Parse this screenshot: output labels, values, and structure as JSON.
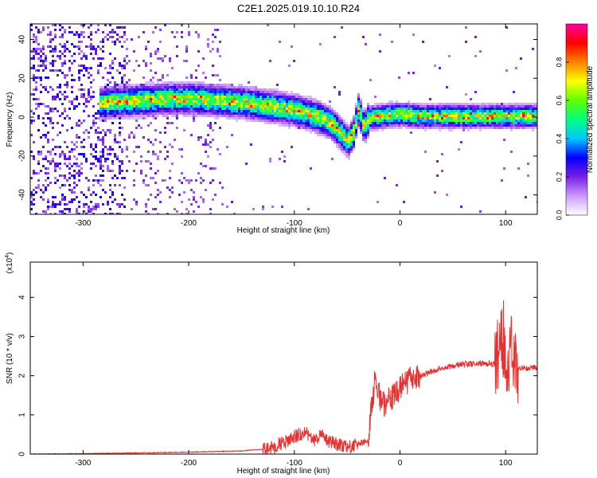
{
  "figure_title": "C2E1.2025.019.10.10.R24",
  "chart_data": [
    {
      "type": "heatmap",
      "xlabel": "Height of straight line (km)",
      "ylabel": "Frequency (Hz)",
      "xlim": [
        -350,
        130
      ],
      "ylim": [
        -50,
        48
      ],
      "xticks": [
        -300,
        -200,
        -100,
        0,
        100
      ],
      "yticks": [
        -40,
        -20,
        0,
        20,
        40
      ],
      "colorbar": {
        "label": "Normalized spectral amplitude",
        "range": [
          0,
          1
        ],
        "ticks": [
          0.0,
          0.2,
          0.4,
          0.6,
          0.8
        ],
        "tick_labels": [
          "0.0",
          "0.2",
          "0.4",
          "0.6",
          "0.8"
        ],
        "colormap": [
          "#ffffff",
          "#cc99ff",
          "#7a1ee6",
          "#0000ff",
          "#00c8ff",
          "#00ff80",
          "#60ff00",
          "#ffff00",
          "#ff8000",
          "#ff0000",
          "#ff00a0"
        ]
      },
      "ridge": {
        "x": [
          -300,
          -280,
          -250,
          -220,
          -200,
          -170,
          -150,
          -120,
          -100,
          -80,
          -65,
          -50,
          -45,
          -40,
          -35,
          -30,
          -20,
          0,
          20,
          50,
          80,
          100,
          130
        ],
        "freq": [
          6,
          8,
          9,
          10,
          10,
          9,
          8,
          6,
          4,
          1,
          -3,
          -12,
          -8,
          5,
          -5,
          0,
          1,
          2,
          1,
          1,
          1,
          1,
          1
        ]
      },
      "grid": false
    },
    {
      "type": "line",
      "xlabel": "Height of straight line (km)",
      "ylabel": "SNR (10 * v/v)",
      "y_multiplier_label": "(x10",
      "y_multiplier_exp": "4",
      "y_multiplier_close": ")",
      "xlim": [
        -350,
        130
      ],
      "ylim": [
        0,
        4.9
      ],
      "xticks": [
        -300,
        -200,
        -100,
        0,
        100
      ],
      "yticks": [
        0,
        1,
        2,
        3,
        4
      ],
      "series": [
        {
          "color": "#e83030",
          "x": [
            -350,
            -300,
            -250,
            -200,
            -150,
            -120,
            -110,
            -100,
            -90,
            -80,
            -75,
            -70,
            -60,
            -50,
            -40,
            -30,
            -27,
            -24,
            -20,
            -15,
            -10,
            -5,
            0,
            10,
            20,
            30,
            40,
            50,
            60,
            80,
            90,
            95,
            98,
            100,
            102,
            105,
            108,
            110,
            115,
            120,
            130
          ],
          "y": [
            0.0,
            0.01,
            0.03,
            0.05,
            0.08,
            0.15,
            0.3,
            0.45,
            0.55,
            0.35,
            0.5,
            0.35,
            0.25,
            0.2,
            0.25,
            0.35,
            1.2,
            1.8,
            1.5,
            1.3,
            1.4,
            1.5,
            1.7,
            1.9,
            2.0,
            2.1,
            2.2,
            2.25,
            2.3,
            2.3,
            2.3,
            2.6,
            3.0,
            2.8,
            1.5,
            3.5,
            2.4,
            2.2,
            2.2,
            2.2,
            2.2
          ]
        }
      ],
      "grid": false
    }
  ]
}
